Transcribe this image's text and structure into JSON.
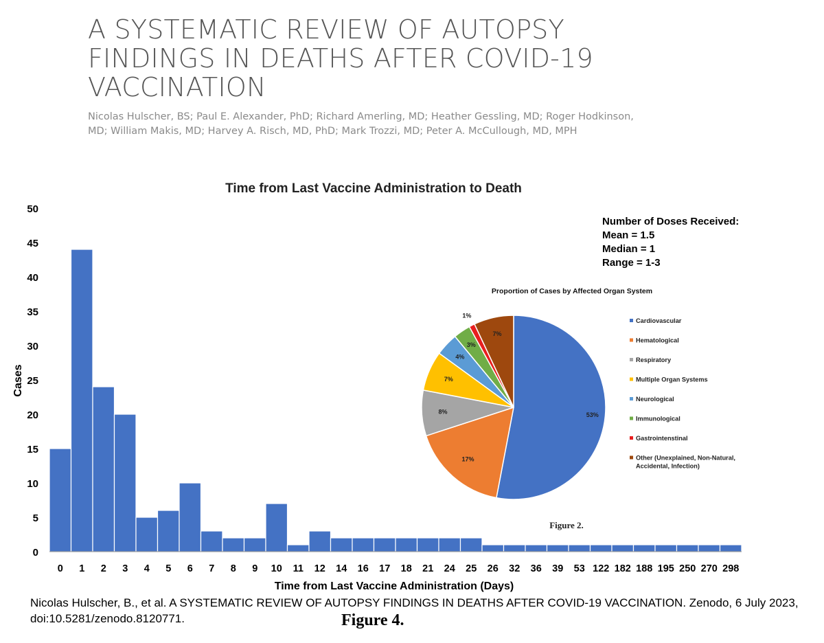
{
  "paper": {
    "title": "A SYSTEMATIC REVIEW OF AUTOPSY FINDINGS IN DEATHS AFTER COVID-19 VACCINATION",
    "authors": "Nicolas Hulscher, BS; Paul E. Alexander, PhD; Richard Amerling, MD; Heather Gessling, MD; Roger Hodkinson, MD; William Makis, MD; Harvey A. Risch, MD, PhD; Mark Trozzi, MD; Peter A. McCullough, MD, MPH"
  },
  "citation": "Nicolas Hulscher, B., et al. A SYSTEMATIC REVIEW OF AUTOPSY FINDINGS IN DEATHS AFTER COVID-19 VACCINATION. Zenodo, 6 July 2023, doi:10.5281/zenodo.8120771.",
  "figure_caption": "Figure 4.",
  "chart_data": [
    {
      "type": "bar",
      "title": "Time from Last Vaccine Administration to Death",
      "xlabel": "Time from Last Vaccine Administration (Days)",
      "ylabel": "Cases",
      "ylim": [
        0,
        50
      ],
      "yticks": [
        0,
        5,
        10,
        15,
        20,
        25,
        30,
        35,
        40,
        45,
        50
      ],
      "grid": false,
      "color": "#4472c4",
      "categories": [
        "0",
        "1",
        "2",
        "3",
        "4",
        "5",
        "6",
        "7",
        "8",
        "9",
        "10",
        "11",
        "12",
        "14",
        "16",
        "17",
        "18",
        "21",
        "24",
        "25",
        "26",
        "32",
        "36",
        "39",
        "53",
        "122",
        "182",
        "188",
        "195",
        "250",
        "270",
        "298"
      ],
      "values": [
        15,
        44,
        24,
        20,
        5,
        6,
        10,
        3,
        2,
        2,
        7,
        1,
        3,
        2,
        2,
        2,
        2,
        2,
        2,
        2,
        1,
        1,
        1,
        1,
        1,
        1,
        1,
        1,
        1,
        1,
        1,
        1
      ],
      "annotation": {
        "heading": "Number of Doses Received:",
        "lines": [
          "Mean = 1.5",
          "Median = 1",
          "Range = 1-3"
        ]
      }
    },
    {
      "type": "pie",
      "title": "Proportion of Cases by Affected Organ System",
      "caption": "Figure 2.",
      "legend_position": "right",
      "slices": [
        {
          "label": "Cardiovascular",
          "value": 53,
          "value_label": "53%",
          "color": "#4472c4"
        },
        {
          "label": "Hematological",
          "value": 17,
          "value_label": "17%",
          "color": "#ed7d31"
        },
        {
          "label": "Respiratory",
          "value": 8,
          "value_label": "8%",
          "color": "#a5a5a5"
        },
        {
          "label": "Multiple Organ Systems",
          "value": 7,
          "value_label": "7%",
          "color": "#ffc000"
        },
        {
          "label": "Neurological",
          "value": 4,
          "value_label": "4%",
          "color": "#5b9bd5"
        },
        {
          "label": "Immunological",
          "value": 3,
          "value_label": "3%",
          "color": "#70ad47"
        },
        {
          "label": "Gastrointenstinal",
          "value": 1,
          "value_label": "1%",
          "color": "#e81f1f"
        },
        {
          "label": "Other (Unexplained, Non-Natural, Accidental, Infection)",
          "value": 7,
          "value_label": "7%",
          "color": "#9e480e"
        }
      ]
    }
  ]
}
